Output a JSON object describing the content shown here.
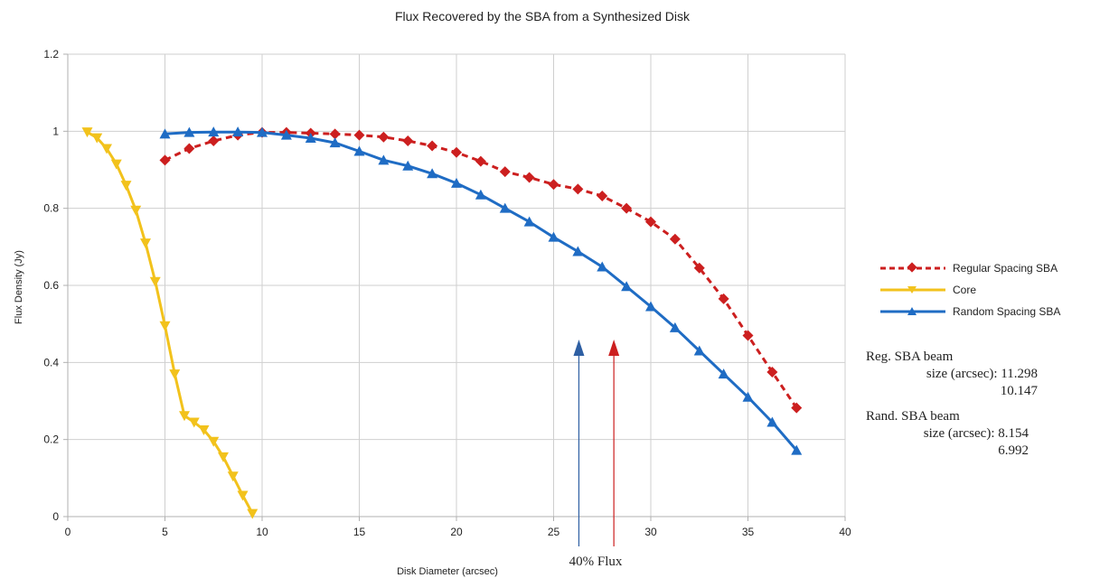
{
  "chart_data": {
    "type": "line",
    "title": "Flux Recovered by the SBA from a Synthesized Disk",
    "xlabel": "Disk Diameter (arcsec)",
    "ylabel": "Flux Density (Jy)",
    "xlim": [
      0,
      40
    ],
    "ylim": [
      0,
      1.2
    ],
    "xticks": [
      "0",
      "5",
      "10",
      "15",
      "20",
      "25",
      "30",
      "35",
      "40"
    ],
    "yticks": [
      "0",
      "0.2",
      "0.4",
      "0.6",
      "0.8",
      "1",
      "1.2"
    ],
    "grid": true,
    "legend_position": "right",
    "series": [
      {
        "name": "Regular Spacing SBA",
        "color": "#cc1f1f",
        "line_style": "dashed",
        "marker": "diamond",
        "x": [
          5,
          6.25,
          7.5,
          8.75,
          10,
          11.25,
          12.5,
          13.75,
          15,
          16.25,
          17.5,
          18.75,
          20,
          21.25,
          22.5,
          23.75,
          25,
          26.25,
          27.5,
          28.75,
          30,
          31.25,
          32.5,
          33.75,
          35,
          36.25,
          37.5
        ],
        "y": [
          0.925,
          0.955,
          0.975,
          0.99,
          0.997,
          0.997,
          0.995,
          0.993,
          0.99,
          0.985,
          0.975,
          0.962,
          0.945,
          0.922,
          0.895,
          0.88,
          0.862,
          0.85,
          0.832,
          0.8,
          0.765,
          0.72,
          0.645,
          0.565,
          0.47,
          0.375,
          0.282
        ]
      },
      {
        "name": "Core",
        "color": "#f2c21c",
        "line_style": "solid",
        "marker": "triangle-down",
        "x": [
          1,
          1.5,
          2,
          2.5,
          3,
          3.5,
          4,
          4.5,
          5,
          5.5,
          6,
          6.5,
          7,
          7.5,
          8,
          8.5,
          9,
          9.5
        ],
        "y": [
          0.998,
          0.983,
          0.955,
          0.915,
          0.86,
          0.795,
          0.71,
          0.61,
          0.495,
          0.37,
          0.262,
          0.245,
          0.225,
          0.195,
          0.155,
          0.105,
          0.055,
          0.008
        ]
      },
      {
        "name": "Random Spacing SBA",
        "color": "#1f6cc4",
        "line_style": "solid",
        "marker": "triangle-up",
        "x": [
          5,
          6.25,
          7.5,
          8.75,
          10,
          11.25,
          12.5,
          13.75,
          15,
          16.25,
          17.5,
          18.75,
          20,
          21.25,
          22.5,
          23.75,
          25,
          26.25,
          27.5,
          28.75,
          30,
          31.25,
          32.5,
          33.75,
          35,
          36.25,
          37.5
        ],
        "y": [
          0.993,
          0.997,
          0.998,
          0.998,
          0.997,
          0.99,
          0.982,
          0.97,
          0.948,
          0.925,
          0.91,
          0.89,
          0.865,
          0.835,
          0.8,
          0.765,
          0.725,
          0.688,
          0.648,
          0.597,
          0.545,
          0.49,
          0.43,
          0.37,
          0.31,
          0.245,
          0.172
        ]
      }
    ],
    "annotations": {
      "arrow_label": "40% Flux",
      "arrows": [
        {
          "x": 26.3,
          "y_top": 0.45,
          "color": "#2e5fa3"
        },
        {
          "x": 28.1,
          "y_top": 0.45,
          "color": "#cc1f1f"
        }
      ],
      "notes": {
        "reg_line1": "Reg. SBA beam",
        "reg_line2": "size (arcsec): 11.298",
        "reg_line3": "10.147",
        "rand_line1": "Rand. SBA beam",
        "rand_line2": "size (arcsec): 8.154",
        "rand_line3": "6.992"
      }
    }
  }
}
